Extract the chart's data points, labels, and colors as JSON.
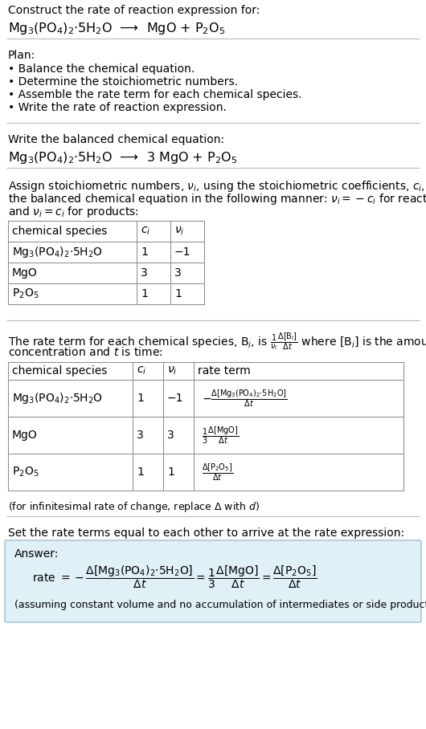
{
  "bg_color": "#ffffff",
  "answer_bg": "#dff0f7",
  "answer_border": "#a8c8dc",
  "title_line1": "Construct the rate of reaction expression for:",
  "title_line2": "Mg$_3$(PO$_4$)$_2$·5H$_2$O  ⟶  MgO + P$_2$O$_5$",
  "plan_header": "Plan:",
  "plan_items": [
    "• Balance the chemical equation.",
    "• Determine the stoichiometric numbers.",
    "• Assemble the rate term for each chemical species.",
    "• Write the rate of reaction expression."
  ],
  "balanced_header": "Write the balanced chemical equation:",
  "balanced_eq": "Mg$_3$(PO$_4$)$_2$·5H$_2$O  ⟶  3 MgO + P$_2$O$_5$",
  "stoich_intro_lines": [
    "Assign stoichiometric numbers, $\\nu_i$, using the stoichiometric coefficients, $c_i$, from",
    "the balanced chemical equation in the following manner: $\\nu_i = -c_i$ for reactants",
    "and $\\nu_i = c_i$ for products:"
  ],
  "table1_headers": [
    "chemical species",
    "$c_i$",
    "$\\nu_i$"
  ],
  "table1_rows": [
    [
      "Mg$_3$(PO$_4$)$_2$·5H$_2$O",
      "1",
      "−1"
    ],
    [
      "MgO",
      "3",
      "3"
    ],
    [
      "P$_2$O$_5$",
      "1",
      "1"
    ]
  ],
  "rate_intro_lines": [
    "The rate term for each chemical species, B$_i$, is $\\frac{1}{\\nu_i}\\frac{\\Delta[\\mathrm{B}_i]}{\\Delta t}$ where [B$_i$] is the amount",
    "concentration and $t$ is time:"
  ],
  "table2_headers": [
    "chemical species",
    "$c_i$",
    "$\\nu_i$",
    "rate term"
  ],
  "table2_row1": [
    "Mg$_3$(PO$_4$)$_2$·5H$_2$O",
    "1",
    "−1"
  ],
  "table2_row1_rate": "$-\\frac{\\Delta[\\mathrm{Mg_3(PO_4)_2{\\cdot}5H_2O}]}{\\Delta t}$",
  "table2_row2": [
    "MgO",
    "3",
    "3"
  ],
  "table2_row2_rate": "$\\frac{1}{3}\\frac{\\Delta[\\mathrm{MgO}]}{\\Delta t}$",
  "table2_row3": [
    "P$_2$O$_5$",
    "1",
    "1"
  ],
  "table2_row3_rate": "$\\frac{\\Delta[\\mathrm{P_2O_5}]}{\\Delta t}$",
  "infinitesimal_note": "(for infinitesimal rate of change, replace Δ with $d$)",
  "set_equal_text": "Set the rate terms equal to each other to arrive at the rate expression:",
  "answer_label": "Answer:",
  "answer_rate": "rate $= -\\dfrac{\\Delta[\\mathrm{Mg_3(PO_4)_2{\\cdot}5H_2O}]}{\\Delta t} = \\dfrac{1}{3}\\dfrac{\\Delta[\\mathrm{MgO}]}{\\Delta t} = \\dfrac{\\Delta[\\mathrm{P_2O_5}]}{\\Delta t}$",
  "answer_note": "(assuming constant volume and no accumulation of intermediates or side products)"
}
